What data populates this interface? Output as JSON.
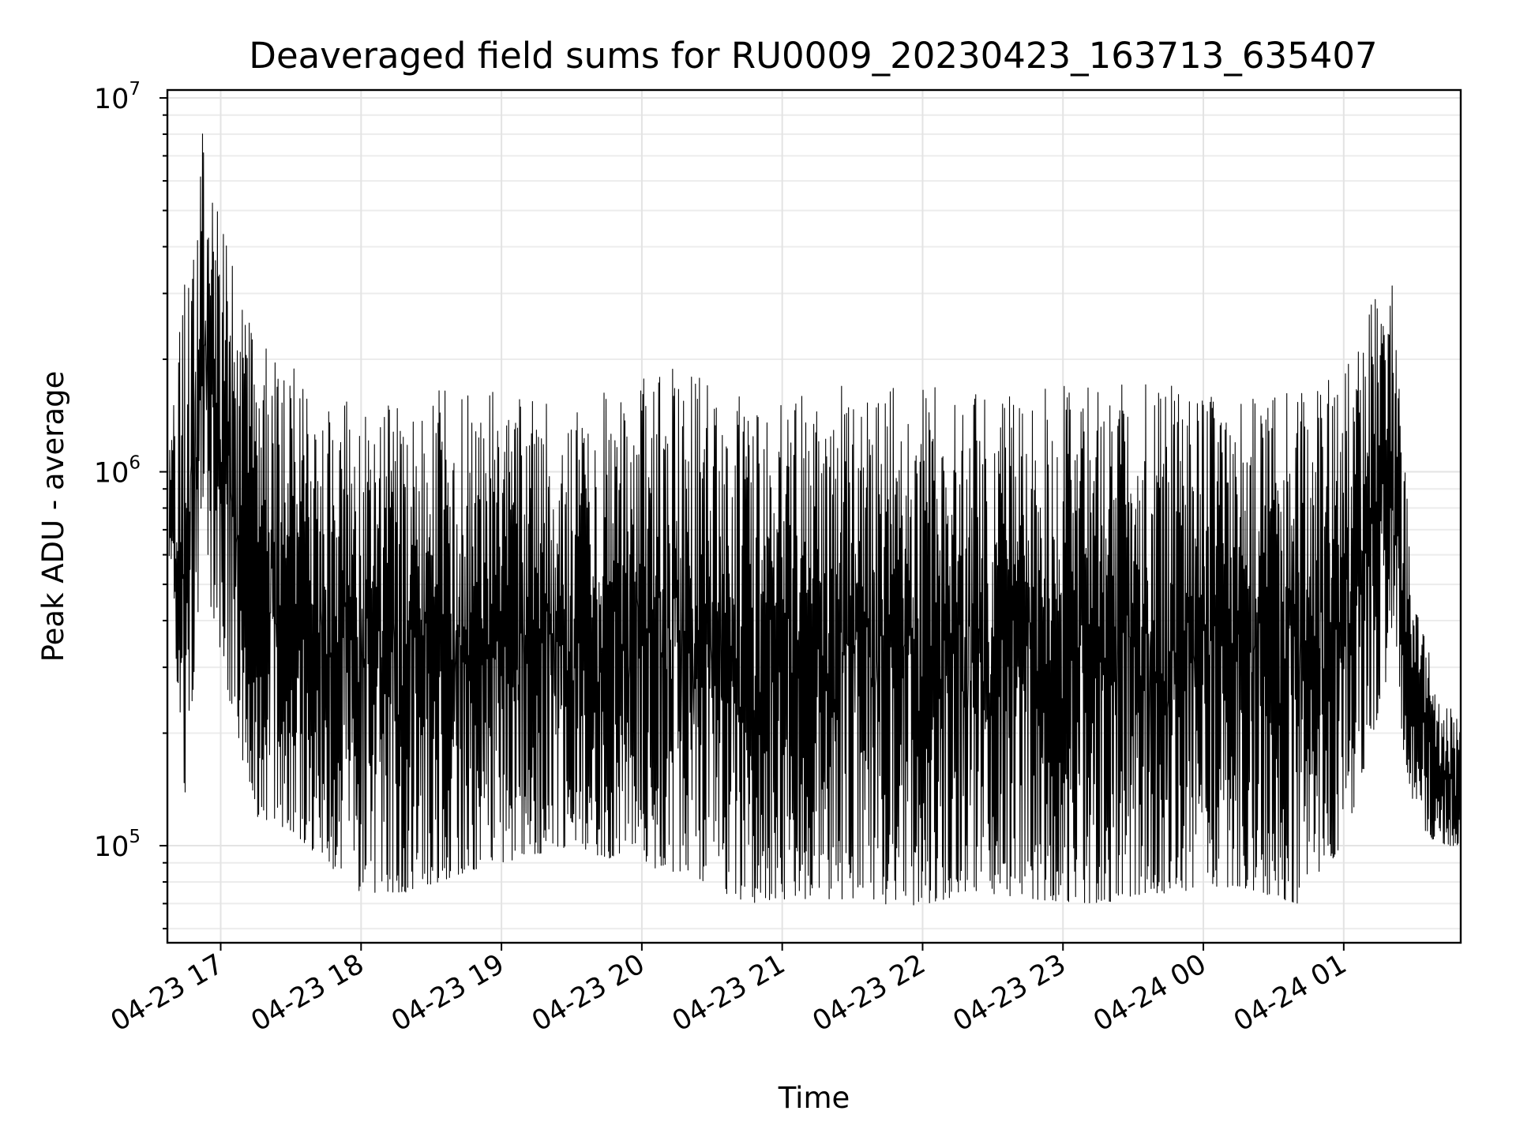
{
  "chart_data": {
    "type": "line",
    "title": "Deaveraged field sums for RU0009_20230423_163713_635407",
    "xlabel": "Time",
    "ylabel": "Peak ADU - average",
    "yscale": "log",
    "ylim": [
      55000,
      10500000
    ],
    "xlim": [
      "2023-04-23 16:37:13",
      "2023-04-24 01:50:00"
    ],
    "grid": true,
    "x_ticks": [
      {
        "t": "2023-04-23 17:00",
        "label": "04-23 17"
      },
      {
        "t": "2023-04-23 18:00",
        "label": "04-23 18"
      },
      {
        "t": "2023-04-23 19:00",
        "label": "04-23 19"
      },
      {
        "t": "2023-04-23 20:00",
        "label": "04-23 20"
      },
      {
        "t": "2023-04-23 21:00",
        "label": "04-23 21"
      },
      {
        "t": "2023-04-23 22:00",
        "label": "04-23 22"
      },
      {
        "t": "2023-04-23 23:00",
        "label": "04-23 23"
      },
      {
        "t": "2023-04-24 00:00",
        "label": "04-24 00"
      },
      {
        "t": "2023-04-24 01:00",
        "label": "04-24 01"
      }
    ],
    "y_ticks": [
      {
        "value": 100000,
        "base": "10",
        "exp": "5"
      },
      {
        "value": 1000000,
        "base": "10",
        "exp": "6"
      },
      {
        "value": 10000000,
        "base": "10",
        "exp": "7"
      }
    ],
    "series": [
      {
        "color": "#000000",
        "envelope": [
          {
            "t": "2023-04-23 16:38",
            "low": 500000,
            "high": 1200000
          },
          {
            "t": "2023-04-23 16:45",
            "low": 130000,
            "high": 3500000
          },
          {
            "t": "2023-04-23 16:52",
            "low": 600000,
            "high": 8500000
          },
          {
            "t": "2023-04-23 17:00",
            "low": 300000,
            "high": 5000000
          },
          {
            "t": "2023-04-23 17:15",
            "low": 120000,
            "high": 2200000
          },
          {
            "t": "2023-04-23 17:30",
            "low": 110000,
            "high": 2000000
          },
          {
            "t": "2023-04-23 17:45",
            "low": 90000,
            "high": 1700000
          },
          {
            "t": "2023-04-23 18:00",
            "low": 75000,
            "high": 1800000
          },
          {
            "t": "2023-04-23 18:20",
            "low": 75000,
            "high": 1500000
          },
          {
            "t": "2023-04-23 18:45",
            "low": 85000,
            "high": 1800000
          },
          {
            "t": "2023-04-23 19:00",
            "low": 90000,
            "high": 1600000
          },
          {
            "t": "2023-04-23 19:30",
            "low": 100000,
            "high": 1500000
          },
          {
            "t": "2023-04-23 19:50",
            "low": 90000,
            "high": 1700000
          },
          {
            "t": "2023-04-23 20:15",
            "low": 85000,
            "high": 1900000
          },
          {
            "t": "2023-04-23 20:45",
            "low": 70000,
            "high": 1600000
          },
          {
            "t": "2023-04-23 21:00",
            "low": 72000,
            "high": 1700000
          },
          {
            "t": "2023-04-23 21:30",
            "low": 72000,
            "high": 1700000
          },
          {
            "t": "2023-04-23 21:55",
            "low": 68000,
            "high": 1750000
          },
          {
            "t": "2023-04-23 22:20",
            "low": 75000,
            "high": 1700000
          },
          {
            "t": "2023-04-23 22:45",
            "low": 72000,
            "high": 1650000
          },
          {
            "t": "2023-04-23 23:15",
            "low": 70000,
            "high": 1750000
          },
          {
            "t": "2023-04-23 23:45",
            "low": 75000,
            "high": 1700000
          },
          {
            "t": "2023-04-24 00:15",
            "low": 78000,
            "high": 1600000
          },
          {
            "t": "2023-04-24 00:40",
            "low": 70000,
            "high": 1700000
          },
          {
            "t": "2023-04-24 01:00",
            "low": 100000,
            "high": 1900000
          },
          {
            "t": "2023-04-24 01:20",
            "low": 300000,
            "high": 3700000
          },
          {
            "t": "2023-04-24 01:30",
            "low": 120000,
            "high": 500000
          },
          {
            "t": "2023-04-24 01:40",
            "low": 100000,
            "high": 260000
          },
          {
            "t": "2023-04-24 01:50",
            "low": 100000,
            "high": 220000
          }
        ]
      }
    ]
  }
}
